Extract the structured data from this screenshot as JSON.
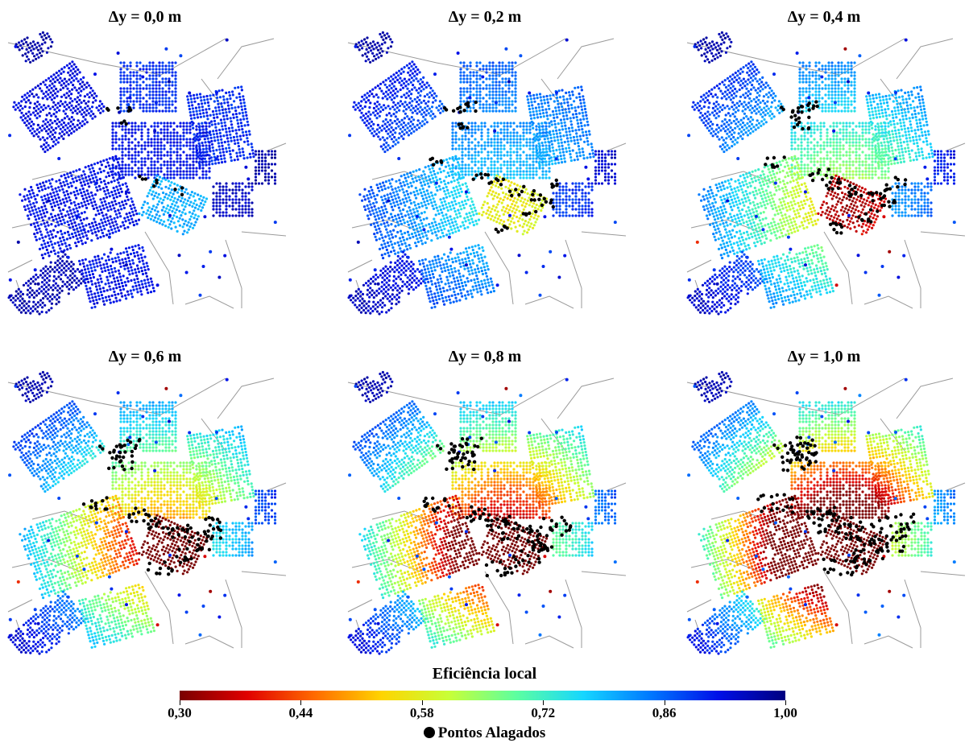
{
  "panels": [
    {
      "title": "Δy = 0,0 m",
      "flood": 0.0
    },
    {
      "title": "Δy = 0,2 m",
      "flood": 0.2
    },
    {
      "title": "Δy = 0,4 m",
      "flood": 0.4
    },
    {
      "title": "Δy = 0,6 m",
      "flood": 0.6
    },
    {
      "title": "Δy = 0,8 m",
      "flood": 0.8
    },
    {
      "title": "Δy = 1,0 m",
      "flood": 1.0
    }
  ],
  "legend": {
    "title": "Eficiência local",
    "min": 0.3,
    "max": 1.0,
    "ticks": [
      "0,30",
      "0,44",
      "0,58",
      "0,72",
      "0,86",
      "1,00"
    ],
    "colors": [
      "#7a0000",
      "#e00000",
      "#ff6a00",
      "#ffd400",
      "#c8ff37",
      "#5dffa0",
      "#16d6ff",
      "#0078ff",
      "#0010e8",
      "#000080"
    ],
    "flooded_label": "Pontos Alagados",
    "flooded_color": "#000000"
  },
  "colors": {
    "road": "#9a9a9a",
    "background": "#ffffff"
  }
}
